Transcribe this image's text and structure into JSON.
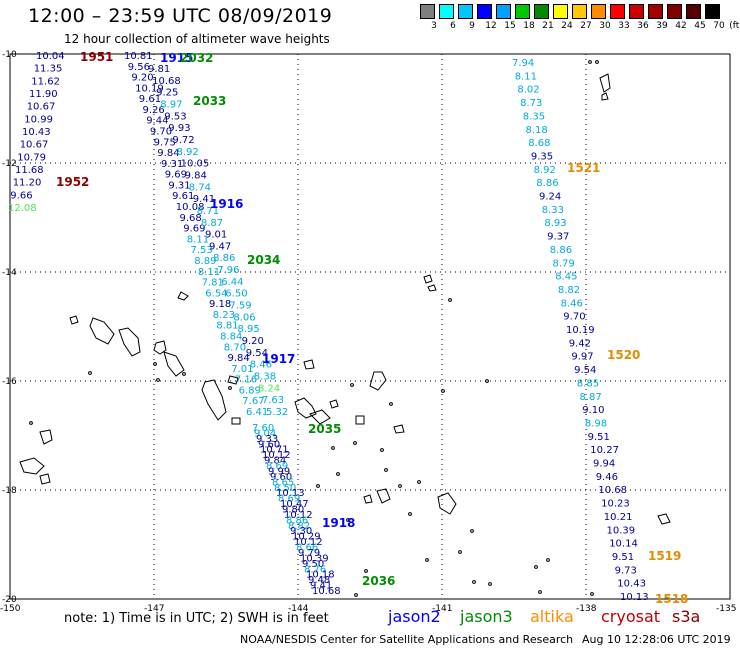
{
  "title": "12:00 – 23:59 UTC 08/09/2019",
  "subtitle": "12 hour collection of altimeter wave heights",
  "colorbar": {
    "unit": "(ft)",
    "labels": [
      "3",
      "6",
      "9",
      "12",
      "15",
      "18",
      "21",
      "24",
      "27",
      "30",
      "33",
      "36",
      "39",
      "42",
      "45",
      "70"
    ],
    "colors": [
      "#7f7f7f",
      "#00ffff",
      "#00c8ff",
      "#0000ff",
      "#00a0ff",
      "#00c800",
      "#008c00",
      "#ffff00",
      "#ffc800",
      "#ff8c00",
      "#ff0000",
      "#c80000",
      "#a00000",
      "#7f0000",
      "#550000",
      "#000000"
    ]
  },
  "axes": {
    "lat_labels": [
      "-10",
      "-12",
      "-14",
      "-16",
      "-18",
      "-20"
    ],
    "lon_labels": [
      "-150",
      "-147",
      "-144",
      "-141",
      "-138",
      "-135"
    ]
  },
  "track_colors": {
    "navy": "#000096",
    "blue": "#0000ff",
    "cyan": "#00aadc",
    "lightgreen": "#50e650",
    "green": "#008c00",
    "darkred": "#8c0000",
    "orange": "#e08c00"
  },
  "tracks": [
    {
      "id": "col-a",
      "points": [
        {
          "v": "10.04",
          "c": "navy"
        },
        {
          "v": "11.35",
          "c": "navy"
        },
        {
          "v": "11.62",
          "c": "navy"
        },
        {
          "v": "11.90",
          "c": "navy"
        },
        {
          "v": "10.67",
          "c": "navy"
        },
        {
          "v": "10.99",
          "c": "navy"
        },
        {
          "v": "10.43",
          "c": "navy"
        },
        {
          "v": "10.67",
          "c": "navy"
        },
        {
          "v": "10.79",
          "c": "navy"
        },
        {
          "v": "11.68",
          "c": "navy"
        },
        {
          "v": "11.20",
          "c": "navy"
        },
        {
          "v": "9.66",
          "c": "navy"
        },
        {
          "v": "12.08",
          "c": "lightgreen"
        }
      ]
    },
    {
      "id": "col-b",
      "points": [
        {
          "v": "10.81",
          "c": "navy"
        },
        {
          "v": "9.56",
          "c": "navy"
        },
        {
          "v": "9.20",
          "c": "navy"
        },
        {
          "v": "10.19",
          "c": "navy"
        },
        {
          "v": "9.61",
          "c": "navy"
        },
        {
          "v": "9.26",
          "c": "navy"
        },
        {
          "v": "9.44",
          "c": "navy"
        },
        {
          "v": "9.70",
          "c": "navy"
        },
        {
          "v": "9.75",
          "c": "navy"
        },
        {
          "v": "9.84",
          "c": "navy"
        },
        {
          "v": "9.31",
          "c": "navy"
        },
        {
          "v": "9.69",
          "c": "navy"
        },
        {
          "v": "9.31",
          "c": "navy"
        },
        {
          "v": "9.61",
          "c": "navy"
        },
        {
          "v": "10.08",
          "c": "navy"
        },
        {
          "v": "9.68",
          "c": "navy"
        },
        {
          "v": "9.69",
          "c": "navy"
        },
        {
          "v": "8.11",
          "c": "cyan"
        },
        {
          "v": "7.53",
          "c": "cyan"
        },
        {
          "v": "8.89",
          "c": "cyan"
        },
        {
          "v": "8.11",
          "c": "cyan"
        },
        {
          "v": "7.81",
          "c": "cyan"
        },
        {
          "v": "6.54",
          "c": "cyan"
        },
        {
          "v": "9.18",
          "c": "navy"
        },
        {
          "v": "8.23",
          "c": "cyan"
        },
        {
          "v": "8.81",
          "c": "cyan"
        },
        {
          "v": "8.84",
          "c": "cyan"
        },
        {
          "v": "8.70",
          "c": "cyan"
        },
        {
          "v": "9.84",
          "c": "navy"
        },
        {
          "v": "7.01",
          "c": "cyan"
        },
        {
          "v": "7.16",
          "c": "cyan"
        },
        {
          "v": "6.89",
          "c": "cyan"
        },
        {
          "v": "7.67",
          "c": "cyan"
        },
        {
          "v": "6.41",
          "c": "cyan"
        }
      ]
    },
    {
      "id": "col-c",
      "points": [
        {
          "v": "9.81",
          "c": "navy"
        },
        {
          "v": "10.68",
          "c": "navy"
        },
        {
          "v": "9.25",
          "c": "navy"
        },
        {
          "v": "8.97",
          "c": "cyan"
        },
        {
          "v": "9.53",
          "c": "navy"
        },
        {
          "v": "9.93",
          "c": "navy"
        },
        {
          "v": "9.72",
          "c": "navy"
        },
        {
          "v": "8.92",
          "c": "cyan"
        },
        {
          "v": "10.05",
          "c": "navy"
        },
        {
          "v": "9.84",
          "c": "navy"
        },
        {
          "v": "8.74",
          "c": "cyan"
        },
        {
          "v": "9.41",
          "c": "navy"
        },
        {
          "v": "8.71",
          "c": "cyan"
        },
        {
          "v": "8.87",
          "c": "cyan"
        },
        {
          "v": "9.01",
          "c": "navy"
        },
        {
          "v": "9.47",
          "c": "navy"
        },
        {
          "v": "8.86",
          "c": "cyan"
        },
        {
          "v": "7.96",
          "c": "cyan"
        },
        {
          "v": "6.44",
          "c": "cyan"
        },
        {
          "v": "6.50",
          "c": "cyan"
        },
        {
          "v": "7.59",
          "c": "cyan"
        },
        {
          "v": "8.06",
          "c": "cyan"
        },
        {
          "v": "8.95",
          "c": "cyan"
        },
        {
          "v": "9.20",
          "c": "navy"
        },
        {
          "v": "9.54",
          "c": "navy"
        },
        {
          "v": "8.46",
          "c": "cyan"
        },
        {
          "v": "8.38",
          "c": "cyan"
        },
        {
          "v": "8.24",
          "c": "lightgreen"
        },
        {
          "v": "7.63",
          "c": "cyan"
        },
        {
          "v": "5.32",
          "c": "cyan"
        }
      ]
    },
    {
      "id": "col-d",
      "points": [
        {
          "v": "7.60",
          "c": "cyan"
        },
        {
          "v": "9.04",
          "c": "cyan"
        },
        {
          "v": "9.33",
          "c": "navy"
        },
        {
          "v": "9.60",
          "c": "navy"
        },
        {
          "v": "10.71",
          "c": "navy"
        },
        {
          "v": "10.12",
          "c": "navy"
        },
        {
          "v": "9.84",
          "c": "navy"
        },
        {
          "v": "8.69",
          "c": "cyan"
        },
        {
          "v": "9.99",
          "c": "navy"
        },
        {
          "v": "9.60",
          "c": "navy"
        },
        {
          "v": "8.65",
          "c": "cyan"
        },
        {
          "v": "8.50",
          "c": "cyan"
        },
        {
          "v": "10.13",
          "c": "navy"
        },
        {
          "v": "8.69",
          "c": "cyan"
        },
        {
          "v": "10.47",
          "c": "navy"
        },
        {
          "v": "9.80",
          "c": "navy"
        },
        {
          "v": "10.12",
          "c": "navy"
        },
        {
          "v": "8.86",
          "c": "cyan"
        },
        {
          "v": "8.82",
          "c": "cyan"
        },
        {
          "v": "9.30",
          "c": "navy"
        },
        {
          "v": "10.29",
          "c": "navy"
        },
        {
          "v": "10.12",
          "c": "navy"
        },
        {
          "v": "8.66",
          "c": "cyan"
        },
        {
          "v": "9.79",
          "c": "navy"
        },
        {
          "v": "10.39",
          "c": "navy"
        },
        {
          "v": "9.50",
          "c": "navy"
        },
        {
          "v": "8.76",
          "c": "cyan"
        },
        {
          "v": "10.18",
          "c": "navy"
        },
        {
          "v": "9.48",
          "c": "navy"
        },
        {
          "v": "9.41",
          "c": "navy"
        },
        {
          "v": "10.68",
          "c": "navy"
        }
      ]
    },
    {
      "id": "col-e",
      "points": [
        {
          "v": "7.94",
          "c": "cyan"
        },
        {
          "v": "8.11",
          "c": "cyan"
        },
        {
          "v": "8.02",
          "c": "cyan"
        },
        {
          "v": "8.73",
          "c": "cyan"
        },
        {
          "v": "8.35",
          "c": "cyan"
        },
        {
          "v": "8.18",
          "c": "cyan"
        },
        {
          "v": "8.68",
          "c": "cyan"
        },
        {
          "v": "9.35",
          "c": "navy"
        },
        {
          "v": "8.92",
          "c": "cyan"
        },
        {
          "v": "8.86",
          "c": "cyan"
        },
        {
          "v": "9.24",
          "c": "navy"
        },
        {
          "v": "8.33",
          "c": "cyan"
        },
        {
          "v": "8.93",
          "c": "cyan"
        },
        {
          "v": "9.37",
          "c": "navy"
        },
        {
          "v": "8.86",
          "c": "cyan"
        },
        {
          "v": "8.79",
          "c": "cyan"
        },
        {
          "v": "8.45",
          "c": "cyan"
        },
        {
          "v": "8.82",
          "c": "cyan"
        },
        {
          "v": "8.46",
          "c": "cyan"
        },
        {
          "v": "9.70",
          "c": "navy"
        },
        {
          "v": "10.19",
          "c": "navy"
        },
        {
          "v": "9.42",
          "c": "navy"
        },
        {
          "v": "9.97",
          "c": "navy"
        },
        {
          "v": "9.54",
          "c": "navy"
        },
        {
          "v": "8.85",
          "c": "cyan"
        },
        {
          "v": "8.87",
          "c": "cyan"
        },
        {
          "v": "9.10",
          "c": "navy"
        },
        {
          "v": "8.98",
          "c": "cyan"
        },
        {
          "v": "9.51",
          "c": "navy"
        },
        {
          "v": "10.27",
          "c": "navy"
        },
        {
          "v": "9.94",
          "c": "navy"
        },
        {
          "v": "9.46",
          "c": "navy"
        },
        {
          "v": "10.68",
          "c": "navy"
        },
        {
          "v": "10.23",
          "c": "navy"
        },
        {
          "v": "10.21",
          "c": "navy"
        },
        {
          "v": "10.39",
          "c": "navy"
        },
        {
          "v": "10.14",
          "c": "navy"
        },
        {
          "v": "9.51",
          "c": "navy"
        },
        {
          "v": "9.73",
          "c": "navy"
        },
        {
          "v": "10.43",
          "c": "navy"
        },
        {
          "v": "10.13",
          "c": "navy"
        }
      ]
    }
  ],
  "time_labels": [
    {
      "t": "1951",
      "c": "darkred"
    },
    {
      "t": "1952",
      "c": "darkred"
    },
    {
      "t": "1915",
      "c": "blue"
    },
    {
      "t": "1916",
      "c": "blue"
    },
    {
      "t": "1917",
      "c": "blue"
    },
    {
      "t": "1918",
      "c": "blue"
    },
    {
      "t": "2032",
      "c": "green"
    },
    {
      "t": "2033",
      "c": "green"
    },
    {
      "t": "2034",
      "c": "green"
    },
    {
      "t": "2035",
      "c": "green"
    },
    {
      "t": "2036",
      "c": "green"
    },
    {
      "t": "1521",
      "c": "orange"
    },
    {
      "t": "1520",
      "c": "orange"
    },
    {
      "t": "1519",
      "c": "orange"
    },
    {
      "t": "1518",
      "c": "orange"
    }
  ],
  "note": "note: 1) Time is in UTC; 2) SWH is in feet",
  "legend": [
    {
      "name": "jason2",
      "color": "#0000ff"
    },
    {
      "name": "jason3",
      "color": "#008c00"
    },
    {
      "name": "altika",
      "color": "#ff8c00"
    },
    {
      "name": "cryosat",
      "color": "#c00000"
    },
    {
      "name": "s3a",
      "color": "#8c0000"
    }
  ],
  "credit": "NOAA/NESDIS Center for Satellite Applications and Research",
  "timestamp": "Aug 10 12:28:06 UTC 2019"
}
